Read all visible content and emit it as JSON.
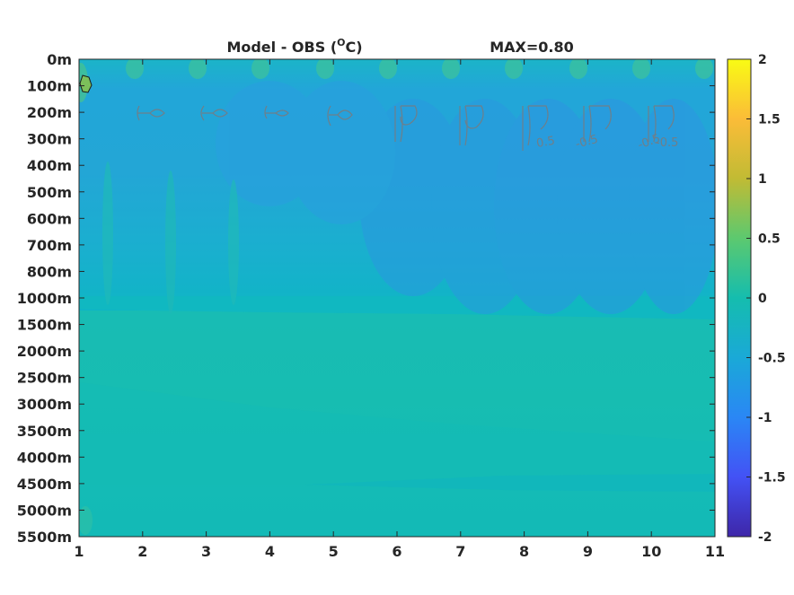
{
  "chart_data": {
    "type": "heatmap",
    "title": "Model - OBS (",
    "title_unit": "O",
    "title_unit_suffix": "C)",
    "max_label": "MAX=0.80",
    "x_ticks": [
      "1",
      "2",
      "3",
      "4",
      "5",
      "6",
      "7",
      "8",
      "9",
      "10",
      "11"
    ],
    "xlim": [
      1,
      11
    ],
    "y_ticks": [
      "0m",
      "100m",
      "200m",
      "300m",
      "400m",
      "500m",
      "600m",
      "700m",
      "800m",
      "1000m",
      "1500m",
      "2000m",
      "2500m",
      "3000m",
      "3500m",
      "4000m",
      "4500m",
      "5000m",
      "5500m"
    ],
    "colorbar_ticks": [
      "2",
      "1.5",
      "1",
      "0.5",
      "0",
      "-0.5",
      "-1",
      "-1.5",
      "-2"
    ],
    "clim": [
      -2,
      2
    ],
    "colormap": [
      "#3e26a8",
      "#4352f5",
      "#2a87f5",
      "#1aa9d7",
      "#15bdae",
      "#5cc96f",
      "#c1bb34",
      "#fbbc38",
      "#f9fb14"
    ],
    "contour_labels": [
      "0.5",
      "-0.5",
      "-0.5",
      "-0.5"
    ],
    "bands": [
      {
        "depth_index_start": 0,
        "depth_index_end": 1,
        "value": 0.0
      },
      {
        "depth_index_start": 1,
        "depth_index_end": 4,
        "value": -0.35
      },
      {
        "depth_index_start": 4,
        "depth_index_end": 9,
        "value": -0.15
      },
      {
        "depth_index_start": 9,
        "depth_index_end": 10,
        "value": -0.05
      },
      {
        "depth_index_start": 10,
        "depth_index_end": 18,
        "value": 0.1
      }
    ]
  }
}
